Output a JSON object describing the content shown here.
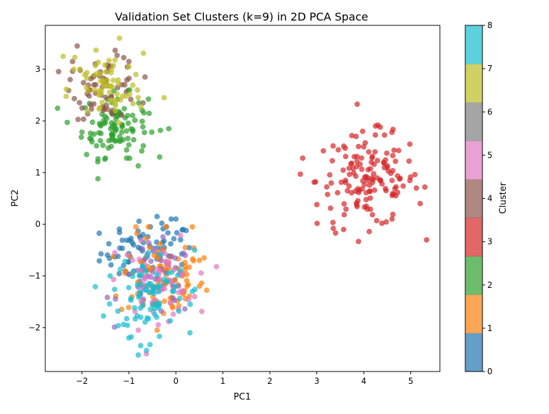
{
  "chart_data": {
    "type": "scatter",
    "title": "Validation Set Clusters (k=9) in 2D PCA Space",
    "xlabel": "PC1",
    "ylabel": "PC2",
    "xlim": [
      -2.78,
      5.62
    ],
    "ylim": [
      -2.85,
      3.85
    ],
    "xticks": [
      -2,
      -1,
      0,
      1,
      2,
      3,
      4,
      5
    ],
    "yticks": [
      -2,
      -1,
      0,
      1,
      2,
      3
    ],
    "xticklabels": [
      "−2",
      "−1",
      "0",
      "1",
      "2",
      "3",
      "4",
      "5"
    ],
    "yticklabels": [
      "−2",
      "−1",
      "0",
      "1",
      "2",
      "3"
    ],
    "grid": false,
    "marker_alpha": 0.7,
    "colorbar": {
      "label": "Cluster",
      "range": [
        0,
        8
      ],
      "ticks": [
        0,
        1,
        2,
        3,
        4,
        5,
        6,
        7,
        8
      ],
      "ticklabels": [
        "0",
        "1",
        "2",
        "3",
        "4",
        "5",
        "6",
        "7",
        "8"
      ],
      "colormap": "tab10",
      "colors": [
        "#1f77b4",
        "#ff7f0e",
        "#2ca02c",
        "#d62728",
        "#9467bd",
        "#8c564b",
        "#e377c2",
        "#7f7f7f",
        "#bcbd22",
        "#17becf"
      ]
    },
    "clusters": [
      {
        "cluster": 0,
        "color": "#1f77b4",
        "center": [
          -0.6,
          -0.55
        ],
        "spread": [
          0.5,
          0.3
        ],
        "count": 80,
        "points": [
          [
            -0.4,
            0.15
          ],
          [
            -0.3,
            0.02
          ],
          [
            -0.1,
            0.1
          ],
          [
            0.0,
            0.1
          ],
          [
            -0.2,
            -0.05
          ],
          [
            -1.3,
            -0.63
          ],
          [
            -1.2,
            -0.16
          ],
          [
            -0.9,
            -0.4
          ],
          [
            -0.7,
            -0.2
          ],
          [
            0.1,
            -0.3
          ]
        ]
      },
      {
        "cluster": 1,
        "color": "#ff7f0e",
        "center": [
          -0.3,
          -1.05
        ],
        "spread": [
          0.45,
          0.4
        ],
        "count": 100,
        "points": [
          [
            -0.85,
            -0.05
          ],
          [
            0.35,
            -0.05
          ],
          [
            0.6,
            -0.65
          ],
          [
            0.5,
            -0.7
          ],
          [
            0.5,
            -1.2
          ],
          [
            -0.4,
            -2.05
          ],
          [
            0.2,
            -0.45
          ],
          [
            -0.2,
            -0.05
          ]
        ]
      },
      {
        "cluster": 2,
        "color": "#2ca02c",
        "center": [
          -1.3,
          1.9
        ],
        "spread": [
          0.35,
          0.3
        ],
        "count": 110,
        "points": [
          [
            -0.15,
            1.85
          ],
          [
            -0.8,
            1.13
          ],
          [
            -1.9,
            1.35
          ],
          [
            -1.5,
            1.28
          ],
          [
            -1.05,
            1.28
          ]
        ]
      },
      {
        "cluster": 3,
        "color": "#d62728",
        "center": [
          4.1,
          0.85
        ],
        "spread": [
          0.55,
          0.45
        ],
        "count": 150,
        "points": [
          [
            2.7,
            1.28
          ],
          [
            2.65,
            0.97
          ],
          [
            3.0,
            0.38
          ],
          [
            3.4,
            -0.17
          ],
          [
            3.35,
            -0.08
          ],
          [
            4.35,
            1.88
          ],
          [
            4.3,
            1.92
          ],
          [
            4.6,
            1.78
          ],
          [
            5.3,
            0.72
          ],
          [
            5.2,
            0.4
          ]
        ]
      },
      {
        "cluster": 4,
        "color": "#9467bd",
        "center": [
          -0.4,
          -1.1
        ],
        "spread": [
          0.4,
          0.35
        ],
        "count": 40,
        "points": []
      },
      {
        "cluster": 5,
        "color": "#8c564b",
        "center": [
          -1.5,
          2.65
        ],
        "spread": [
          0.35,
          0.3
        ],
        "count": 70,
        "points": [
          [
            -2.1,
            3.45
          ],
          [
            -2.2,
            3.15
          ],
          [
            -2.2,
            2.96
          ],
          [
            -2.25,
            2.8
          ],
          [
            -1.25,
            3.27
          ],
          [
            -1.0,
            3.15
          ],
          [
            -0.7,
            2.35
          ]
        ]
      },
      {
        "cluster": 6,
        "color": "#e377c2",
        "center": [
          -0.4,
          -1.1
        ],
        "spread": [
          0.4,
          0.35
        ],
        "count": 60,
        "points": [
          [
            0.1,
            -0.22
          ],
          [
            -0.8,
            -2.05
          ],
          [
            -1.3,
            -0.55
          ],
          [
            0.4,
            -1.4
          ]
        ]
      },
      {
        "cluster": 7,
        "color": "#bcbd22",
        "center": [
          -1.5,
          2.6
        ],
        "spread": [
          0.4,
          0.35
        ],
        "count": 70,
        "points": [
          [
            -2.4,
            3.25
          ],
          [
            -2.15,
            3.23
          ],
          [
            -1.2,
            3.6
          ],
          [
            -1.7,
            3.37
          ],
          [
            -0.25,
            2.45
          ],
          [
            -1.0,
            3.05
          ]
        ]
      },
      {
        "cluster": 8,
        "color": "#17becf",
        "center": [
          -0.55,
          -1.3
        ],
        "spread": [
          0.4,
          0.4
        ],
        "count": 90,
        "points": [
          [
            -1.0,
            -2.2
          ],
          [
            -0.95,
            -2.18
          ],
          [
            -0.8,
            -2.53
          ],
          [
            -0.75,
            -2.35
          ],
          [
            -0.55,
            -2.33
          ],
          [
            -0.35,
            -2.17
          ],
          [
            0.3,
            -2.1
          ],
          [
            0.35,
            -1.3
          ],
          [
            0.4,
            -0.5
          ],
          [
            -1.4,
            -1.0
          ],
          [
            -0.75,
            -1.8
          ]
        ]
      }
    ]
  }
}
